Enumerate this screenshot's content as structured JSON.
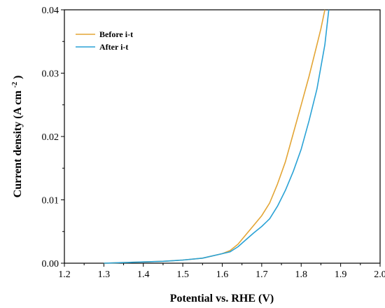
{
  "chart_data": {
    "type": "line",
    "xlabel": "Potential vs. RHE (V)",
    "ylabel_main": "Current density (A cm",
    "ylabel_sup": "-2",
    "ylabel_tail": ")",
    "xlim": [
      1.2,
      2.0
    ],
    "ylim": [
      0.0,
      0.04
    ],
    "xticks": [
      1.2,
      1.3,
      1.4,
      1.5,
      1.6,
      1.7,
      1.8,
      1.9,
      2.0
    ],
    "xtick_labels": [
      "1.2",
      "1.3",
      "1.4",
      "1.5",
      "1.6",
      "1.7",
      "1.8",
      "1.9",
      "2.0"
    ],
    "yticks": [
      0.0,
      0.01,
      0.02,
      0.03,
      0.04
    ],
    "ytick_labels": [
      "0.00",
      "0.01",
      "0.02",
      "0.03",
      "0.04"
    ],
    "grid": false,
    "legend_position": "top-left",
    "series": [
      {
        "name": "Before i-t",
        "color": "#e3a535",
        "x": [
          1.3,
          1.35,
          1.4,
          1.45,
          1.5,
          1.55,
          1.6,
          1.62,
          1.64,
          1.66,
          1.68,
          1.7,
          1.72,
          1.74,
          1.76,
          1.78,
          1.8,
          1.82,
          1.84,
          1.85,
          1.86
        ],
        "y": [
          0.0,
          0.0001,
          0.0002,
          0.0003,
          0.0005,
          0.0008,
          0.0015,
          0.002,
          0.003,
          0.0045,
          0.006,
          0.0075,
          0.0095,
          0.0125,
          0.016,
          0.0205,
          0.025,
          0.0295,
          0.0345,
          0.037,
          0.04
        ]
      },
      {
        "name": "After i-t",
        "color": "#2aa2d6",
        "x": [
          1.3,
          1.35,
          1.4,
          1.45,
          1.5,
          1.55,
          1.6,
          1.62,
          1.64,
          1.66,
          1.68,
          1.7,
          1.72,
          1.74,
          1.76,
          1.78,
          1.8,
          1.82,
          1.84,
          1.86,
          1.87
        ],
        "y": [
          0.0,
          0.0001,
          0.0002,
          0.0003,
          0.0005,
          0.0008,
          0.0015,
          0.0018,
          0.0026,
          0.0037,
          0.0048,
          0.0058,
          0.007,
          0.009,
          0.0115,
          0.0145,
          0.018,
          0.0225,
          0.0275,
          0.0345,
          0.04
        ]
      }
    ]
  }
}
